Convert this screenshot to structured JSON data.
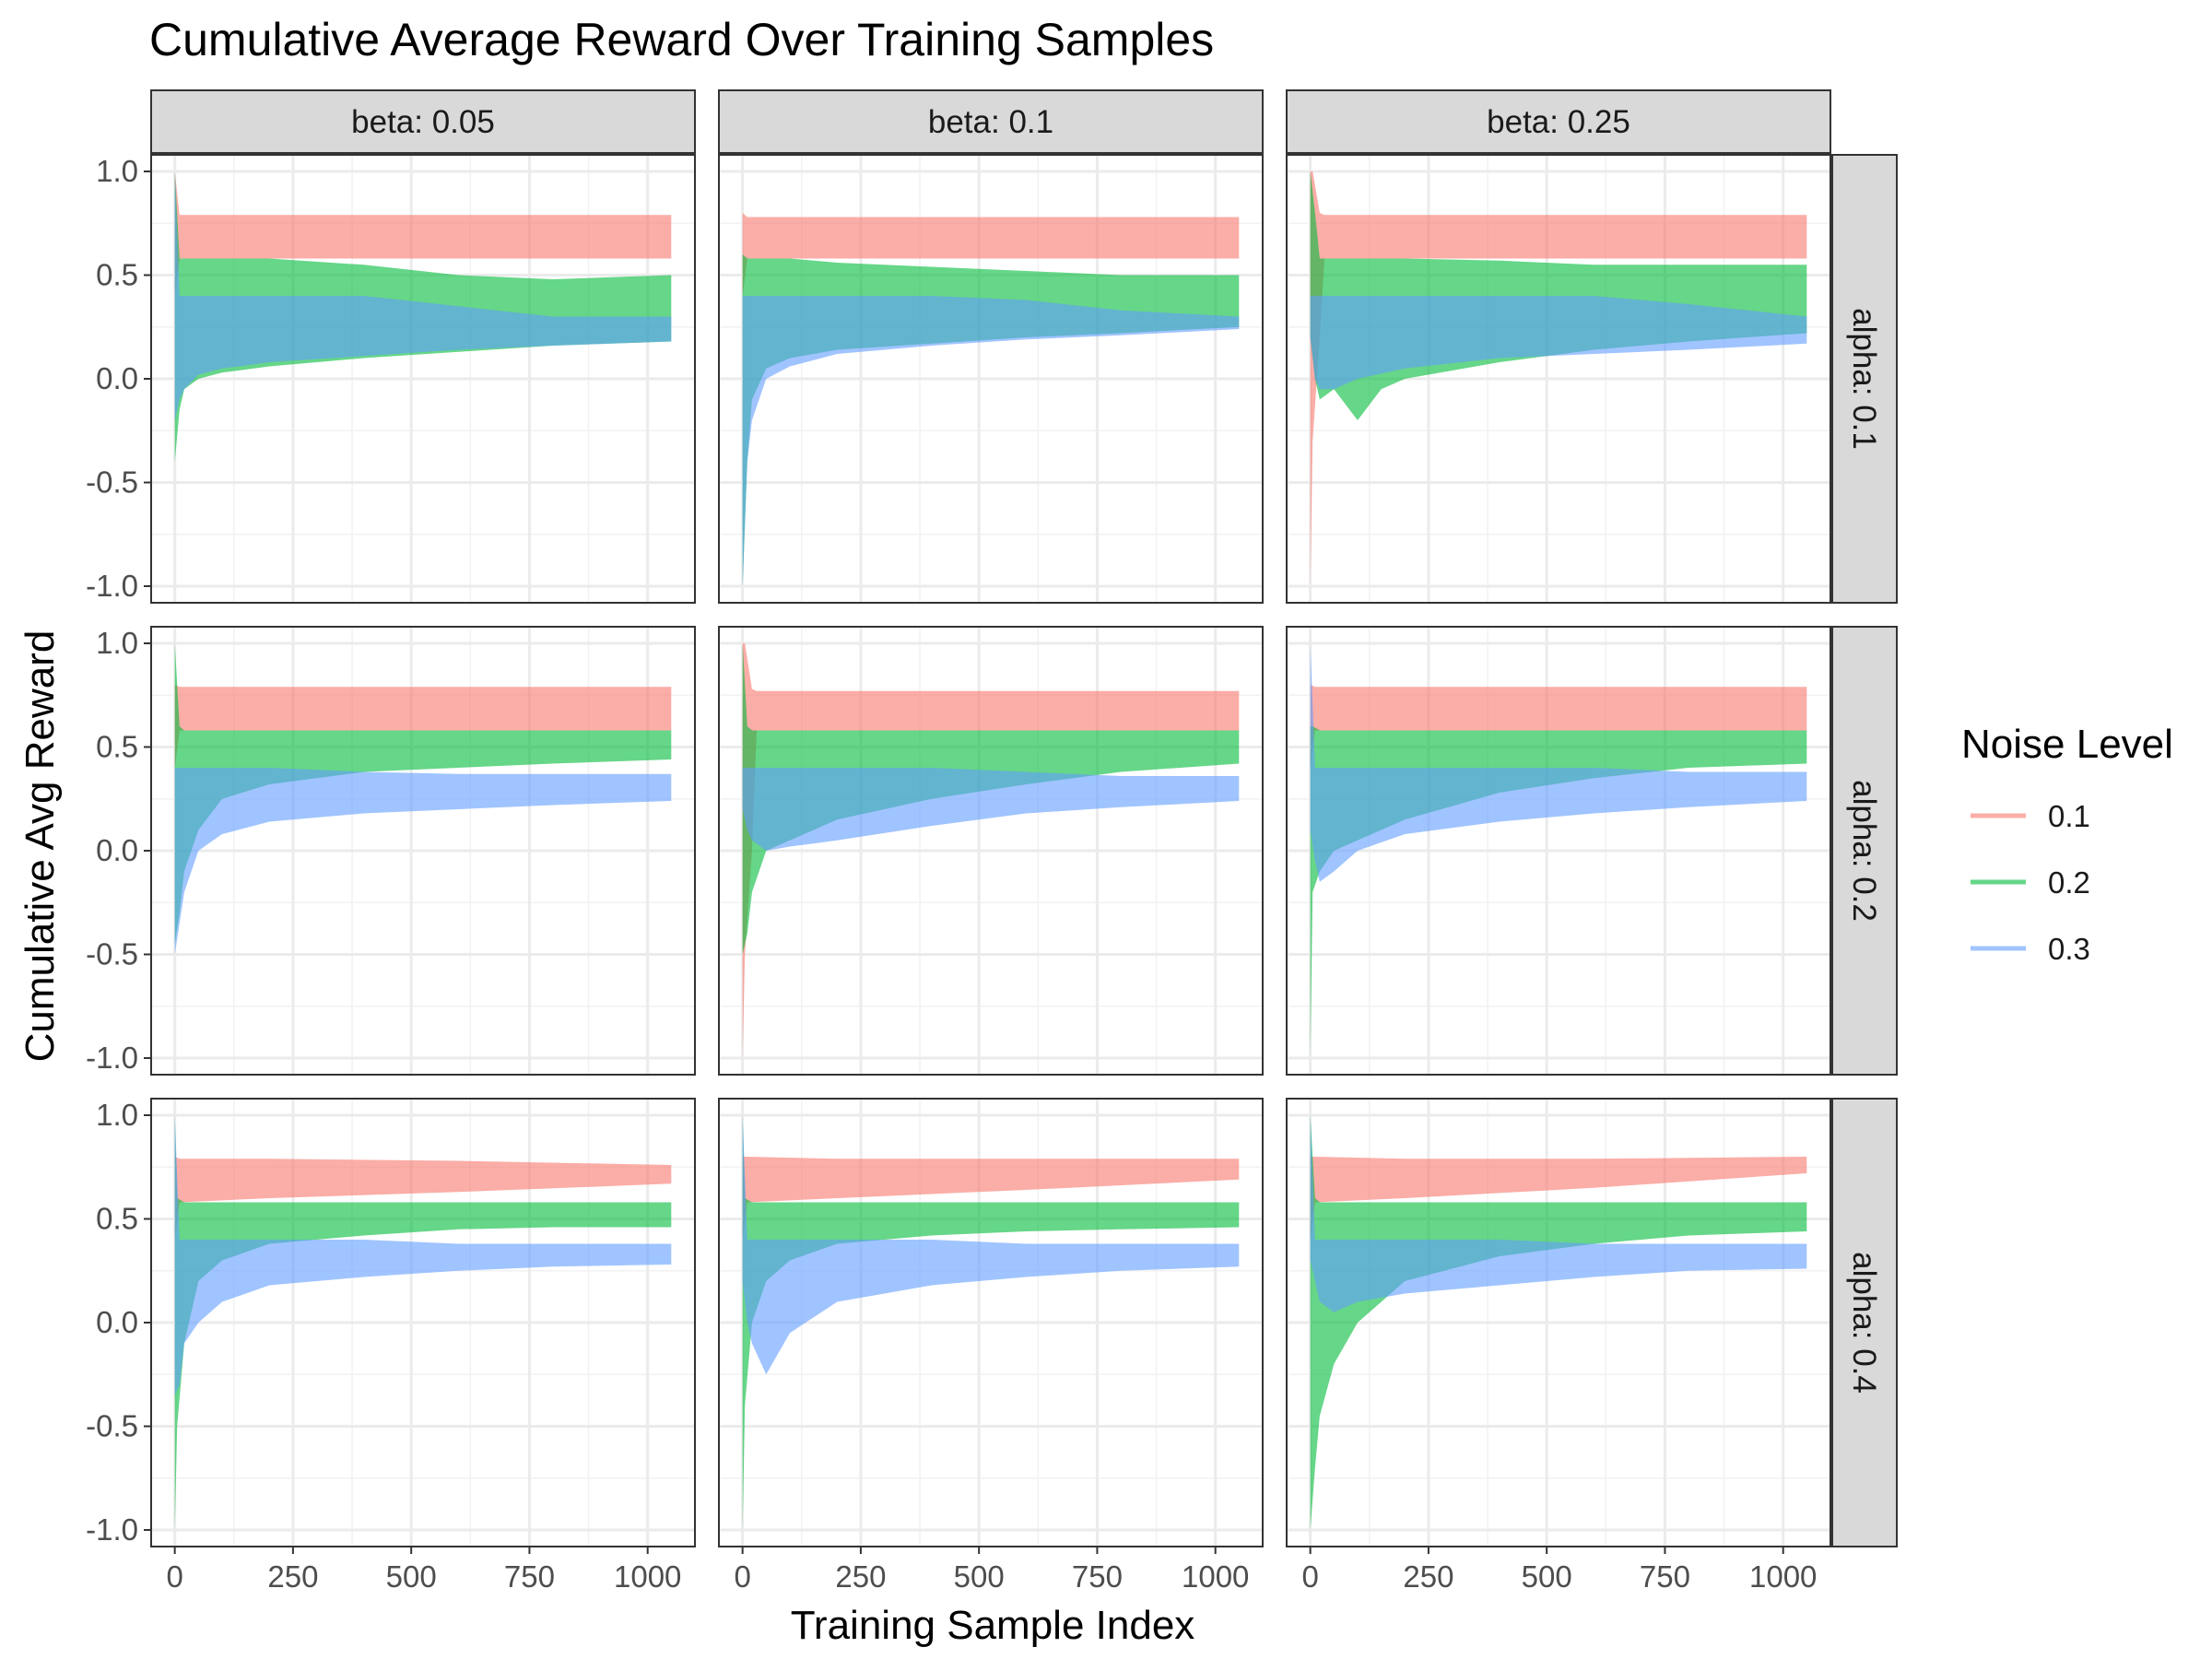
{
  "chart_data": {
    "type": "area",
    "title": "Cumulative Average Reward Over Training Samples",
    "xlabel": "Training Sample Index",
    "ylabel": "Cumulative Avg Reward",
    "xlim": [
      -50,
      1100
    ],
    "ylim": [
      -1.08,
      1.08
    ],
    "x_ticks": [
      0,
      250,
      500,
      750,
      1000
    ],
    "x_tick_labels": [
      "0",
      "250",
      "500",
      "750",
      "1000"
    ],
    "y_ticks": [
      -1,
      -0.5,
      0,
      0.5,
      1
    ],
    "y_tick_labels": [
      "-1.0",
      "-0.5",
      "0.0",
      "0.5",
      "1.0"
    ],
    "grid": true,
    "legend": {
      "title": "Noise Level",
      "placement": "right",
      "entries": [
        {
          "label": "0.1",
          "color": "#F8766D"
        },
        {
          "label": "0.2",
          "color": "#00BA38"
        },
        {
          "label": "0.3",
          "color": "#619CFF"
        }
      ]
    },
    "col_strips": [
      "beta: 0.05",
      "beta: 0.1",
      "beta: 0.25"
    ],
    "row_strips": [
      "alpha: 0.1",
      "alpha: 0.2",
      "alpha: 0.4"
    ],
    "panels": [
      {
        "row": 0,
        "col": 0,
        "series": [
          {
            "noise": "0.1",
            "x": [
              0,
              10,
              1050
            ],
            "lower": [
              0.4,
              0.58,
              0.58
            ],
            "upper": [
              1.0,
              0.79,
              0.79
            ]
          },
          {
            "noise": "0.2",
            "x": [
              0,
              10,
              20,
              50,
              100,
              200,
              400,
              600,
              800,
              1050
            ],
            "lower": [
              -0.4,
              -0.15,
              -0.05,
              0.0,
              0.03,
              0.06,
              0.1,
              0.13,
              0.16,
              0.18
            ],
            "upper": [
              1.0,
              0.58,
              0.58,
              0.58,
              0.58,
              0.58,
              0.55,
              0.5,
              0.48,
              0.5
            ]
          },
          {
            "noise": "0.3",
            "x": [
              0,
              10,
              20,
              50,
              100,
              200,
              400,
              600,
              800,
              1050
            ],
            "lower": [
              -0.2,
              -0.1,
              -0.05,
              0.02,
              0.05,
              0.08,
              0.11,
              0.14,
              0.16,
              0.18
            ],
            "upper": [
              1.0,
              0.4,
              0.4,
              0.4,
              0.4,
              0.4,
              0.4,
              0.35,
              0.3,
              0.3
            ]
          }
        ]
      },
      {
        "row": 0,
        "col": 1,
        "series": [
          {
            "noise": "0.1",
            "x": [
              0,
              10,
              1050
            ],
            "lower": [
              0.4,
              0.58,
              0.58
            ],
            "upper": [
              0.8,
              0.78,
              0.78
            ]
          },
          {
            "noise": "0.2",
            "x": [
              0,
              10,
              20,
              50,
              100,
              200,
              400,
              600,
              800,
              1050
            ],
            "lower": [
              -1.0,
              -0.4,
              -0.1,
              0.05,
              0.1,
              0.14,
              0.17,
              0.2,
              0.22,
              0.25
            ],
            "upper": [
              0.6,
              0.58,
              0.58,
              0.58,
              0.58,
              0.56,
              0.54,
              0.52,
              0.5,
              0.5
            ]
          },
          {
            "noise": "0.3",
            "x": [
              0,
              10,
              20,
              50,
              100,
              200,
              400,
              600,
              800,
              1050
            ],
            "lower": [
              -1.0,
              -0.4,
              -0.2,
              0.0,
              0.06,
              0.12,
              0.16,
              0.19,
              0.21,
              0.24
            ],
            "upper": [
              0.4,
              0.4,
              0.4,
              0.4,
              0.4,
              0.4,
              0.4,
              0.38,
              0.33,
              0.3
            ]
          }
        ]
      },
      {
        "row": 0,
        "col": 2,
        "series": [
          {
            "noise": "0.1",
            "x": [
              0,
              5,
              20,
              30,
              40,
              1050
            ],
            "lower": [
              -1.0,
              -0.3,
              0.2,
              0.58,
              0.58,
              0.58
            ],
            "upper": [
              1.0,
              1.0,
              0.8,
              0.79,
              0.79,
              0.79
            ]
          },
          {
            "noise": "0.2",
            "x": [
              0,
              10,
              20,
              50,
              100,
              150,
              200,
              400,
              600,
              800,
              1050
            ],
            "lower": [
              0.2,
              0.0,
              -0.1,
              -0.05,
              -0.2,
              -0.05,
              0.0,
              0.08,
              0.14,
              0.18,
              0.22
            ],
            "upper": [
              1.0,
              0.8,
              0.58,
              0.58,
              0.58,
              0.58,
              0.58,
              0.57,
              0.55,
              0.55,
              0.55
            ]
          },
          {
            "noise": "0.3",
            "x": [
              0,
              10,
              20,
              50,
              100,
              200,
              400,
              600,
              800,
              1050
            ],
            "lower": [
              0.2,
              0.0,
              -0.05,
              -0.05,
              0.0,
              0.05,
              0.1,
              0.12,
              0.14,
              0.17
            ],
            "upper": [
              0.4,
              0.4,
              0.4,
              0.4,
              0.4,
              0.4,
              0.4,
              0.4,
              0.36,
              0.3
            ]
          }
        ]
      },
      {
        "row": 1,
        "col": 0,
        "series": [
          {
            "noise": "0.1",
            "x": [
              0,
              10,
              1050
            ],
            "lower": [
              0.4,
              0.58,
              0.58
            ],
            "upper": [
              0.8,
              0.79,
              0.79
            ]
          },
          {
            "noise": "0.2",
            "x": [
              0,
              10,
              20,
              50,
              100,
              200,
              400,
              600,
              800,
              1050
            ],
            "lower": [
              -0.45,
              -0.3,
              -0.1,
              0.1,
              0.25,
              0.32,
              0.38,
              0.4,
              0.42,
              0.44
            ],
            "upper": [
              1.0,
              0.6,
              0.58,
              0.58,
              0.58,
              0.58,
              0.58,
              0.58,
              0.58,
              0.58
            ]
          },
          {
            "noise": "0.3",
            "x": [
              0,
              10,
              20,
              50,
              100,
              200,
              400,
              600,
              800,
              1050
            ],
            "lower": [
              -0.5,
              -0.35,
              -0.2,
              0.0,
              0.08,
              0.14,
              0.18,
              0.2,
              0.22,
              0.24
            ],
            "upper": [
              0.4,
              0.4,
              0.4,
              0.4,
              0.4,
              0.4,
              0.38,
              0.37,
              0.37,
              0.37
            ]
          }
        ]
      },
      {
        "row": 1,
        "col": 1,
        "series": [
          {
            "noise": "0.1",
            "x": [
              0,
              5,
              20,
              30,
              40,
              1050
            ],
            "lower": [
              -1.0,
              -0.5,
              0.0,
              0.58,
              0.58,
              0.58
            ],
            "upper": [
              1.0,
              1.0,
              0.78,
              0.77,
              0.77,
              0.77
            ]
          },
          {
            "noise": "0.2",
            "x": [
              0,
              10,
              20,
              50,
              100,
              200,
              400,
              600,
              800,
              1050
            ],
            "lower": [
              -0.5,
              -0.4,
              -0.2,
              0.0,
              0.05,
              0.15,
              0.25,
              0.32,
              0.38,
              0.42
            ],
            "upper": [
              1.0,
              0.6,
              0.58,
              0.58,
              0.58,
              0.58,
              0.58,
              0.58,
              0.58,
              0.58
            ]
          },
          {
            "noise": "0.3",
            "x": [
              0,
              10,
              20,
              50,
              100,
              200,
              400,
              600,
              800,
              1050
            ],
            "lower": [
              0.2,
              0.1,
              0.05,
              0.0,
              0.02,
              0.05,
              0.12,
              0.18,
              0.21,
              0.24
            ],
            "upper": [
              0.4,
              0.4,
              0.4,
              0.4,
              0.4,
              0.4,
              0.4,
              0.38,
              0.36,
              0.36
            ]
          }
        ]
      },
      {
        "row": 1,
        "col": 2,
        "series": [
          {
            "noise": "0.1",
            "x": [
              0,
              10,
              1050
            ],
            "lower": [
              0.4,
              0.58,
              0.58
            ],
            "upper": [
              0.8,
              0.79,
              0.79
            ]
          },
          {
            "noise": "0.2",
            "x": [
              0,
              5,
              20,
              50,
              100,
              200,
              400,
              600,
              800,
              1050
            ],
            "lower": [
              -1.0,
              -0.2,
              -0.1,
              0.0,
              0.05,
              0.15,
              0.28,
              0.35,
              0.4,
              0.42
            ],
            "upper": [
              0.6,
              0.6,
              0.58,
              0.58,
              0.58,
              0.58,
              0.58,
              0.58,
              0.58,
              0.58
            ]
          },
          {
            "noise": "0.3",
            "x": [
              0,
              10,
              20,
              50,
              100,
              200,
              400,
              600,
              800,
              1050
            ],
            "lower": [
              0.1,
              -0.05,
              -0.15,
              -0.1,
              0.0,
              0.08,
              0.14,
              0.18,
              0.21,
              0.24
            ],
            "upper": [
              1.0,
              0.4,
              0.4,
              0.4,
              0.4,
              0.4,
              0.4,
              0.4,
              0.38,
              0.38
            ]
          }
        ]
      },
      {
        "row": 2,
        "col": 0,
        "series": [
          {
            "noise": "0.1",
            "x": [
              0,
              10,
              200,
              600,
              1050
            ],
            "lower": [
              0.4,
              0.58,
              0.6,
              0.63,
              0.67
            ],
            "upper": [
              0.8,
              0.79,
              0.79,
              0.78,
              0.76
            ]
          },
          {
            "noise": "0.2",
            "x": [
              0,
              5,
              20,
              50,
              100,
              200,
              400,
              600,
              800,
              1050
            ],
            "lower": [
              -1.0,
              -0.5,
              -0.1,
              0.2,
              0.3,
              0.38,
              0.42,
              0.45,
              0.46,
              0.46
            ],
            "upper": [
              1.0,
              0.6,
              0.58,
              0.58,
              0.58,
              0.58,
              0.58,
              0.58,
              0.58,
              0.58
            ]
          },
          {
            "noise": "0.3",
            "x": [
              0,
              10,
              20,
              50,
              100,
              200,
              400,
              600,
              800,
              1050
            ],
            "lower": [
              -0.35,
              -0.3,
              -0.1,
              0.0,
              0.1,
              0.18,
              0.22,
              0.25,
              0.27,
              0.28
            ],
            "upper": [
              1.0,
              0.4,
              0.4,
              0.4,
              0.4,
              0.4,
              0.4,
              0.38,
              0.38,
              0.38
            ]
          }
        ]
      },
      {
        "row": 2,
        "col": 1,
        "series": [
          {
            "noise": "0.1",
            "x": [
              0,
              10,
              200,
              600,
              1050
            ],
            "lower": [
              0.4,
              0.58,
              0.6,
              0.64,
              0.69
            ],
            "upper": [
              0.8,
              0.8,
              0.79,
              0.79,
              0.79
            ]
          },
          {
            "noise": "0.2",
            "x": [
              0,
              5,
              20,
              50,
              100,
              200,
              400,
              600,
              800,
              1050
            ],
            "lower": [
              -1.0,
              -0.4,
              0.0,
              0.2,
              0.3,
              0.38,
              0.42,
              0.44,
              0.45,
              0.46
            ],
            "upper": [
              1.0,
              0.6,
              0.58,
              0.58,
              0.58,
              0.58,
              0.58,
              0.58,
              0.58,
              0.58
            ]
          },
          {
            "noise": "0.3",
            "x": [
              0,
              10,
              20,
              50,
              100,
              200,
              400,
              600,
              800,
              1050
            ],
            "lower": [
              0.2,
              0.0,
              -0.1,
              -0.25,
              -0.05,
              0.1,
              0.18,
              0.22,
              0.25,
              0.27
            ],
            "upper": [
              1.0,
              0.4,
              0.4,
              0.4,
              0.4,
              0.4,
              0.4,
              0.38,
              0.38,
              0.38
            ]
          }
        ]
      },
      {
        "row": 2,
        "col": 2,
        "series": [
          {
            "noise": "0.1",
            "x": [
              0,
              10,
              200,
              600,
              1050
            ],
            "lower": [
              0.4,
              0.58,
              0.6,
              0.65,
              0.72
            ],
            "upper": [
              0.8,
              0.8,
              0.79,
              0.79,
              0.8
            ]
          },
          {
            "noise": "0.2",
            "x": [
              0,
              10,
              20,
              50,
              100,
              200,
              400,
              600,
              800,
              1050
            ],
            "lower": [
              -1.0,
              -0.7,
              -0.45,
              -0.2,
              0.0,
              0.2,
              0.32,
              0.38,
              0.42,
              0.44
            ],
            "upper": [
              1.0,
              0.6,
              0.58,
              0.58,
              0.58,
              0.58,
              0.58,
              0.58,
              0.58,
              0.58
            ]
          },
          {
            "noise": "0.3",
            "x": [
              0,
              10,
              20,
              50,
              100,
              200,
              400,
              600,
              800,
              1050
            ],
            "lower": [
              0.3,
              0.2,
              0.1,
              0.05,
              0.1,
              0.14,
              0.18,
              0.22,
              0.25,
              0.26
            ],
            "upper": [
              1.0,
              0.4,
              0.4,
              0.4,
              0.4,
              0.4,
              0.4,
              0.38,
              0.38,
              0.38
            ]
          }
        ]
      }
    ]
  }
}
